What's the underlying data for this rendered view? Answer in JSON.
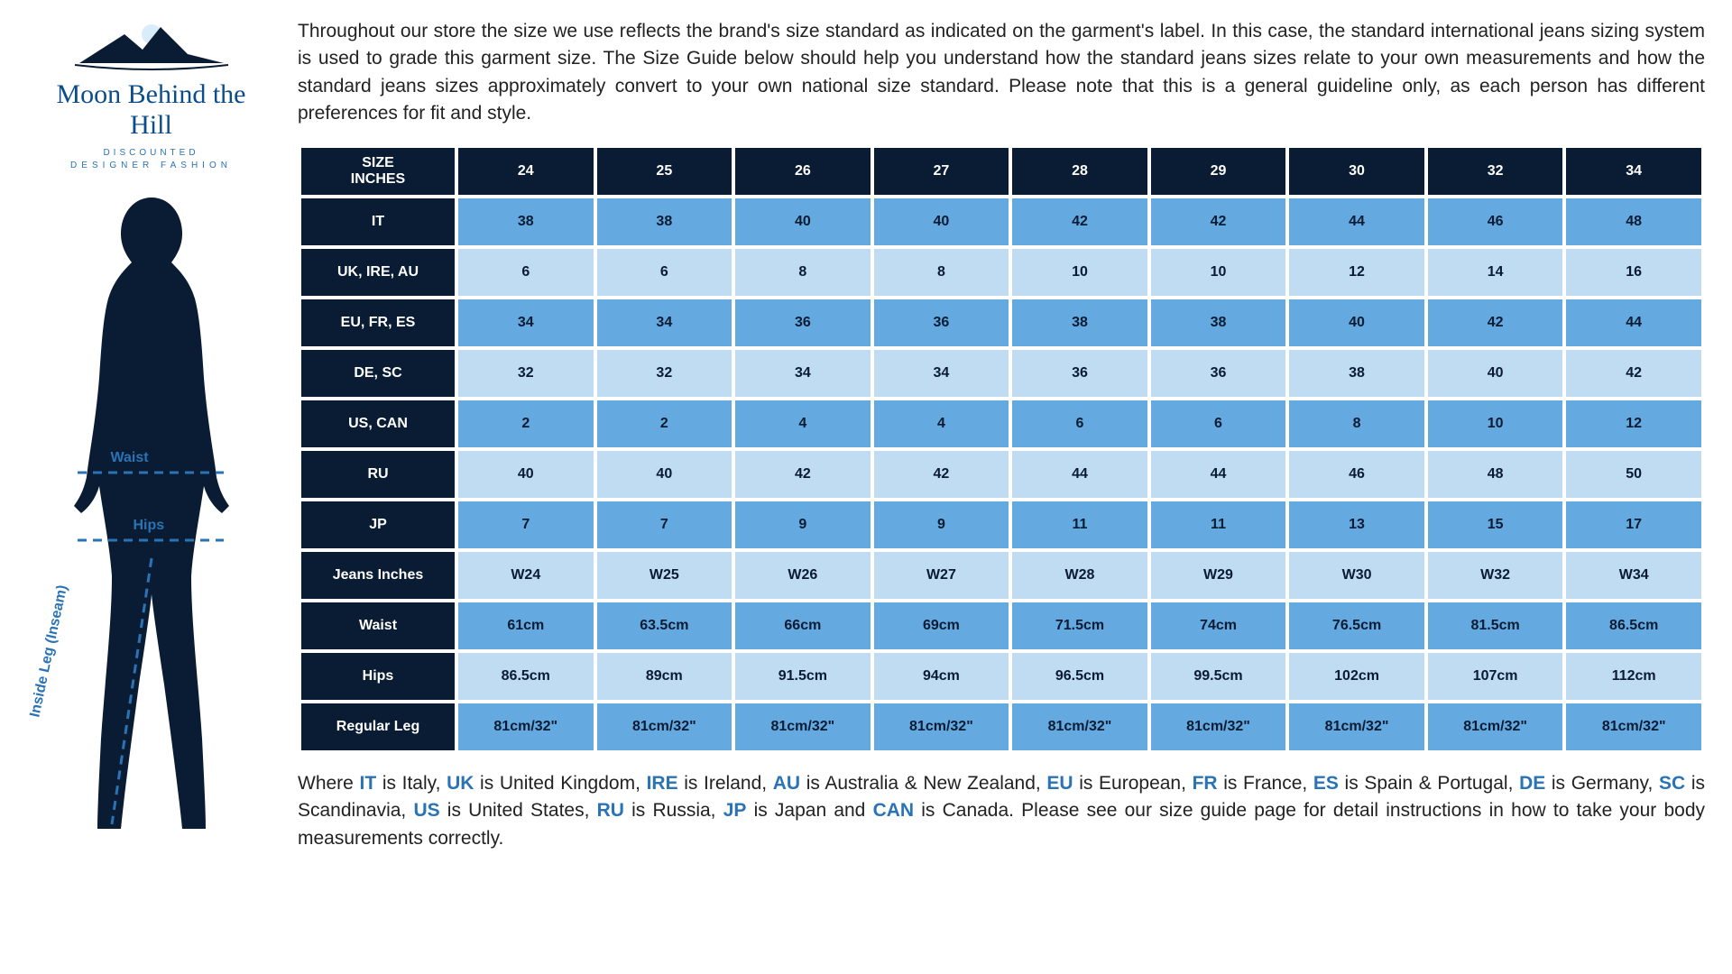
{
  "logo": {
    "brand": "Moon Behind the Hill",
    "sub1": "DISCOUNTED",
    "sub2": "DESIGNER FASHION",
    "mountain_fill": "#0a1c33",
    "accent": "#2a73b5"
  },
  "intro": "Throughout our store the size we use reflects the brand's size standard as indicated on the garment's label. In this case, the standard international jeans sizing system is used to grade this garment size. The Size Guide below should help you understand how the standard jeans sizes relate to your own measurements and how the standard jeans sizes approximately convert to your own national size standard. Please note that this is a general guideline only, as each person has different preferences for fit and style.",
  "body_labels": {
    "waist": "Waist",
    "hips": "Hips",
    "inseam": "Inside Leg (Inseam)"
  },
  "table": {
    "header_bg": "#0a1c33",
    "header_fg": "#ffffff",
    "odd_bg": "#64a9e0",
    "even_bg": "#bfdcf3",
    "cell_fg": "#0a1c33",
    "row_header_label": "SIZE INCHES",
    "size_cols": [
      "24",
      "25",
      "26",
      "27",
      "28",
      "29",
      "30",
      "32",
      "34"
    ],
    "rows": [
      {
        "label": "IT",
        "values": [
          "38",
          "38",
          "40",
          "40",
          "42",
          "42",
          "44",
          "46",
          "48"
        ]
      },
      {
        "label": "UK, IRE, AU",
        "values": [
          "6",
          "6",
          "8",
          "8",
          "10",
          "10",
          "12",
          "14",
          "16"
        ]
      },
      {
        "label": "EU, FR, ES",
        "values": [
          "34",
          "34",
          "36",
          "36",
          "38",
          "38",
          "40",
          "42",
          "44"
        ]
      },
      {
        "label": "DE, SC",
        "values": [
          "32",
          "32",
          "34",
          "34",
          "36",
          "36",
          "38",
          "40",
          "42"
        ]
      },
      {
        "label": "US, CAN",
        "values": [
          "2",
          "2",
          "4",
          "4",
          "6",
          "6",
          "8",
          "10",
          "12"
        ]
      },
      {
        "label": "RU",
        "values": [
          "40",
          "40",
          "42",
          "42",
          "44",
          "44",
          "46",
          "48",
          "50"
        ]
      },
      {
        "label": "JP",
        "values": [
          "7",
          "7",
          "9",
          "9",
          "11",
          "11",
          "13",
          "15",
          "17"
        ]
      },
      {
        "label": "Jeans Inches",
        "values": [
          "W24",
          "W25",
          "W26",
          "W27",
          "W28",
          "W29",
          "W30",
          "W32",
          "W34"
        ]
      },
      {
        "label": "Waist",
        "values": [
          "61cm",
          "63.5cm",
          "66cm",
          "69cm",
          "71.5cm",
          "74cm",
          "76.5cm",
          "81.5cm",
          "86.5cm"
        ]
      },
      {
        "label": "Hips",
        "values": [
          "86.5cm",
          "89cm",
          "91.5cm",
          "94cm",
          "96.5cm",
          "99.5cm",
          "102cm",
          "107cm",
          "112cm"
        ]
      },
      {
        "label": "Regular Leg",
        "values": [
          "81cm/32\"",
          "81cm/32\"",
          "81cm/32\"",
          "81cm/32\"",
          "81cm/32\"",
          "81cm/32\"",
          "81cm/32\"",
          "81cm/32\"",
          "81cm/32\""
        ]
      }
    ]
  },
  "footer": {
    "segments": [
      {
        "t": "Where "
      },
      {
        "c": "IT"
      },
      {
        "t": " is Italy, "
      },
      {
        "c": "UK"
      },
      {
        "t": " is United Kingdom, "
      },
      {
        "c": "IRE"
      },
      {
        "t": " is Ireland, "
      },
      {
        "c": "AU"
      },
      {
        "t": " is Australia & New Zealand, "
      },
      {
        "c": "EU"
      },
      {
        "t": " is European, "
      },
      {
        "c": "FR"
      },
      {
        "t": " is France, "
      },
      {
        "c": "ES"
      },
      {
        "t": " is Spain & Portugal, "
      },
      {
        "c": "DE"
      },
      {
        "t": " is Germany, "
      },
      {
        "c": "SC"
      },
      {
        "t": " is Scandinavia, "
      },
      {
        "c": "US"
      },
      {
        "t": " is United States, "
      },
      {
        "c": "RU"
      },
      {
        "t": " is Russia, "
      },
      {
        "c": "JP"
      },
      {
        "t": " is Japan and "
      },
      {
        "c": "CAN"
      },
      {
        "t": " is Canada. Please see our size guide page for detail instructions in how to take your body measurements correctly."
      }
    ]
  }
}
